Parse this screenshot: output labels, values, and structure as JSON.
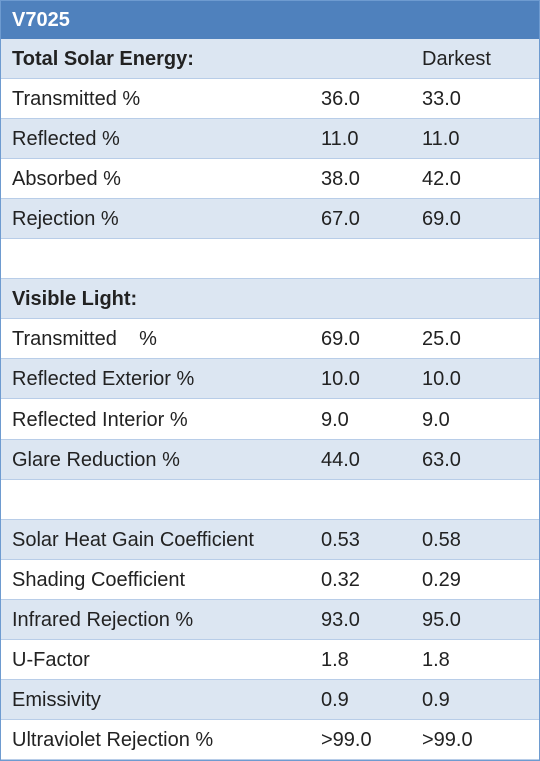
{
  "table": {
    "title": "V7025",
    "rows": [
      {
        "section": "Total Solar Energy:",
        "column": "Darkest"
      },
      {
        "label": "Transmitted %",
        "values": [
          "36.0",
          "33.0"
        ]
      },
      {
        "label": "Reflected %",
        "values": [
          "11.0",
          "11.0"
        ]
      },
      {
        "label": "Absorbed %",
        "values": [
          "38.0",
          "42.0"
        ]
      },
      {
        "label": "Rejection %",
        "values": [
          "67.0",
          "69.0"
        ]
      },
      null,
      {
        "section": "Visible Light:"
      },
      {
        "label": "Transmitted    %",
        "values": [
          "69.0",
          "25.0"
        ]
      },
      {
        "label": "Reflected Exterior %",
        "values": [
          "10.0",
          "10.0"
        ]
      },
      {
        "label": "Reflected Interior %",
        "values": [
          "9.0",
          "9.0"
        ]
      },
      {
        "label": "Glare Reduction %",
        "values": [
          "44.0",
          "63.0"
        ]
      },
      null,
      {
        "label": "Solar Heat Gain Coefficient",
        "values": [
          "0.53",
          "0.58"
        ]
      },
      {
        "label": "Shading Coefficient",
        "values": [
          "0.32",
          "0.29"
        ]
      },
      {
        "label": "Infrared Rejection %",
        "values": [
          "93.0",
          "95.0"
        ]
      },
      {
        "label": "U-Factor",
        "values": [
          "1.8",
          "1.8"
        ]
      },
      {
        "label": "Emissivity",
        "values": [
          "0.9",
          "0.9"
        ]
      },
      {
        "label": "Ultraviolet Rejection %",
        "values": [
          ">99.0",
          ">99.0"
        ]
      }
    ]
  }
}
